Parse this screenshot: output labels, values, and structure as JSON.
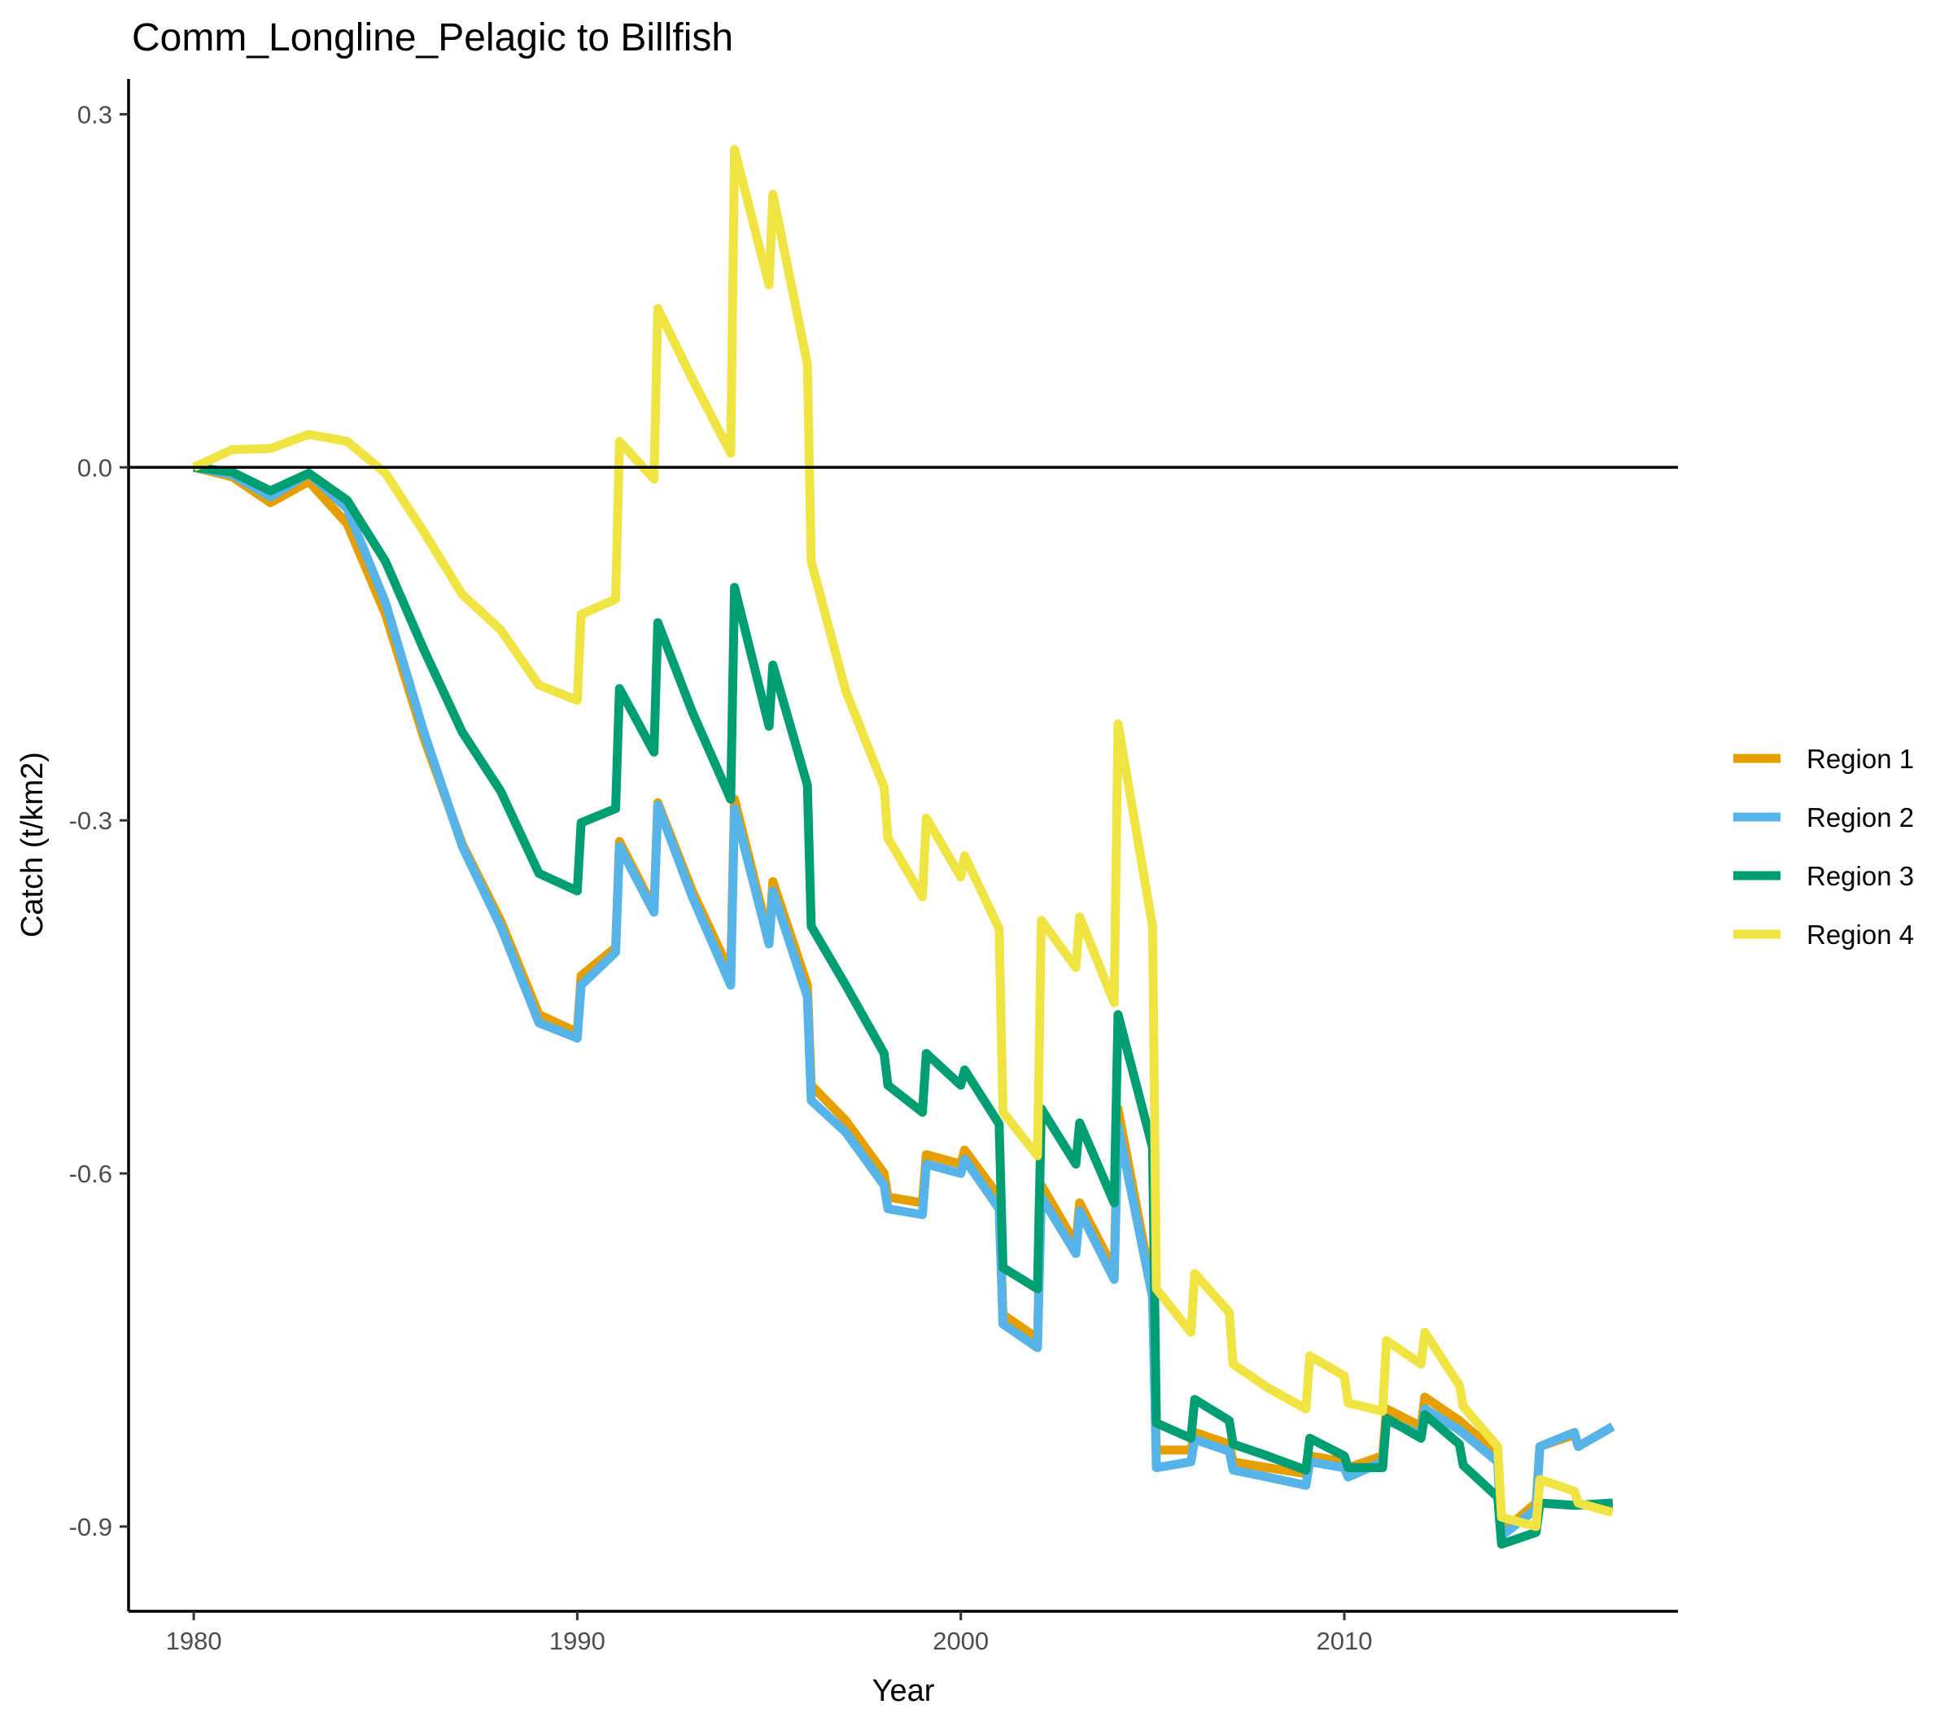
{
  "chart_data": {
    "type": "line",
    "title": "Comm_Longline_Pelagic to Billfish",
    "xlabel": "Year",
    "ylabel": "Catch (t/km2)",
    "xlim": [
      1978.3,
      2018.7
    ],
    "ylim": [
      -0.972,
      0.33
    ],
    "x_ticks": [
      1980,
      1990,
      2000,
      2010
    ],
    "y_ticks": [
      0.3,
      0.0,
      -0.3,
      -0.6,
      -0.9
    ],
    "y_tick_labels": [
      "0.3",
      "0.0",
      "-0.3",
      "-0.6",
      "-0.9"
    ],
    "reference_line_y": 0,
    "grid": false,
    "legend_position": "right",
    "series": [
      {
        "name": "Region 1",
        "color": "#E69F00",
        "points": [
          [
            1980,
            0
          ],
          [
            1981,
            -0.008
          ],
          [
            1982,
            -0.03
          ],
          [
            1983,
            -0.012
          ],
          [
            1984,
            -0.048
          ],
          [
            1985,
            -0.125
          ],
          [
            1986,
            -0.23
          ],
          [
            1987,
            -0.32
          ],
          [
            1988,
            -0.385
          ],
          [
            1989,
            -0.465
          ],
          [
            1990,
            -0.48
          ],
          [
            1990.1,
            -0.432
          ],
          [
            1991,
            -0.408
          ],
          [
            1991.1,
            -0.318
          ],
          [
            1992,
            -0.375
          ],
          [
            1992.1,
            -0.285
          ],
          [
            1993,
            -0.36
          ],
          [
            1994,
            -0.43
          ],
          [
            1994.1,
            -0.282
          ],
          [
            1995,
            -0.4
          ],
          [
            1995.1,
            -0.352
          ],
          [
            1996,
            -0.44
          ],
          [
            1996.1,
            -0.525
          ],
          [
            1997,
            -0.555
          ],
          [
            1998,
            -0.6
          ],
          [
            1998.1,
            -0.62
          ],
          [
            1999,
            -0.625
          ],
          [
            1999.1,
            -0.584
          ],
          [
            2000,
            -0.592
          ],
          [
            2000.1,
            -0.58
          ],
          [
            2001,
            -0.62
          ],
          [
            2001.1,
            -0.72
          ],
          [
            2002,
            -0.74
          ],
          [
            2002.1,
            -0.61
          ],
          [
            2003,
            -0.66
          ],
          [
            2003.1,
            -0.625
          ],
          [
            2004,
            -0.682
          ],
          [
            2004.1,
            -0.545
          ],
          [
            2005,
            -0.7
          ],
          [
            2005.1,
            -0.835
          ],
          [
            2006,
            -0.835
          ],
          [
            2006.1,
            -0.82
          ],
          [
            2007,
            -0.83
          ],
          [
            2007.1,
            -0.845
          ],
          [
            2008,
            -0.85
          ],
          [
            2009,
            -0.855
          ],
          [
            2009.1,
            -0.84
          ],
          [
            2010,
            -0.845
          ],
          [
            2010.1,
            -0.85
          ],
          [
            2011,
            -0.84
          ],
          [
            2011.1,
            -0.8
          ],
          [
            2012,
            -0.815
          ],
          [
            2012.1,
            -0.79
          ],
          [
            2013,
            -0.81
          ],
          [
            2014,
            -0.838
          ],
          [
            2014.1,
            -0.905
          ],
          [
            2015,
            -0.88
          ],
          [
            2015.1,
            -0.832
          ],
          [
            2016,
            -0.822
          ],
          [
            2016.1,
            -0.832
          ],
          [
            2017,
            -0.815
          ]
        ]
      },
      {
        "name": "Region 2",
        "color": "#56B4E9",
        "points": [
          [
            1980,
            0
          ],
          [
            1981,
            -0.006
          ],
          [
            1982,
            -0.025
          ],
          [
            1983,
            -0.005
          ],
          [
            1984,
            -0.035
          ],
          [
            1985,
            -0.115
          ],
          [
            1986,
            -0.225
          ],
          [
            1987,
            -0.322
          ],
          [
            1988,
            -0.39
          ],
          [
            1989,
            -0.472
          ],
          [
            1990,
            -0.485
          ],
          [
            1990.1,
            -0.44
          ],
          [
            1991,
            -0.412
          ],
          [
            1991.1,
            -0.322
          ],
          [
            1992,
            -0.378
          ],
          [
            1992.1,
            -0.287
          ],
          [
            1993,
            -0.365
          ],
          [
            1994,
            -0.44
          ],
          [
            1994.1,
            -0.29
          ],
          [
            1995,
            -0.405
          ],
          [
            1995.1,
            -0.36
          ],
          [
            1996,
            -0.45
          ],
          [
            1996.1,
            -0.538
          ],
          [
            1997,
            -0.565
          ],
          [
            1998,
            -0.61
          ],
          [
            1998.1,
            -0.63
          ],
          [
            1999,
            -0.635
          ],
          [
            1999.1,
            -0.592
          ],
          [
            2000,
            -0.6
          ],
          [
            2000.1,
            -0.588
          ],
          [
            2001,
            -0.63
          ],
          [
            2001.1,
            -0.728
          ],
          [
            2002,
            -0.748
          ],
          [
            2002.1,
            -0.62
          ],
          [
            2003,
            -0.668
          ],
          [
            2003.1,
            -0.632
          ],
          [
            2004,
            -0.69
          ],
          [
            2004.1,
            -0.56
          ],
          [
            2005,
            -0.705
          ],
          [
            2005.1,
            -0.85
          ],
          [
            2006,
            -0.845
          ],
          [
            2006.1,
            -0.826
          ],
          [
            2007,
            -0.836
          ],
          [
            2007.1,
            -0.852
          ],
          [
            2008,
            -0.858
          ],
          [
            2009,
            -0.865
          ],
          [
            2009.1,
            -0.845
          ],
          [
            2010,
            -0.85
          ],
          [
            2010.1,
            -0.858
          ],
          [
            2011,
            -0.845
          ],
          [
            2011.1,
            -0.81
          ],
          [
            2012,
            -0.822
          ],
          [
            2012.1,
            -0.8
          ],
          [
            2013,
            -0.818
          ],
          [
            2014,
            -0.845
          ],
          [
            2014.1,
            -0.908
          ],
          [
            2015,
            -0.885
          ],
          [
            2015.1,
            -0.832
          ],
          [
            2016,
            -0.82
          ],
          [
            2016.1,
            -0.832
          ],
          [
            2017,
            -0.815
          ]
        ]
      },
      {
        "name": "Region 3",
        "color": "#009E73",
        "points": [
          [
            1980,
            0
          ],
          [
            1981,
            -0.004
          ],
          [
            1982,
            -0.02
          ],
          [
            1983,
            -0.005
          ],
          [
            1984,
            -0.028
          ],
          [
            1985,
            -0.08
          ],
          [
            1986,
            -0.155
          ],
          [
            1987,
            -0.225
          ],
          [
            1988,
            -0.275
          ],
          [
            1989,
            -0.345
          ],
          [
            1990,
            -0.36
          ],
          [
            1990.1,
            -0.302
          ],
          [
            1991,
            -0.29
          ],
          [
            1991.1,
            -0.188
          ],
          [
            1992,
            -0.242
          ],
          [
            1992.1,
            -0.132
          ],
          [
            1993,
            -0.208
          ],
          [
            1994,
            -0.282
          ],
          [
            1994.1,
            -0.102
          ],
          [
            1995,
            -0.22
          ],
          [
            1995.1,
            -0.168
          ],
          [
            1996,
            -0.27
          ],
          [
            1996.1,
            -0.39
          ],
          [
            1997,
            -0.44
          ],
          [
            1998,
            -0.498
          ],
          [
            1998.1,
            -0.525
          ],
          [
            1999,
            -0.548
          ],
          [
            1999.1,
            -0.498
          ],
          [
            2000,
            -0.525
          ],
          [
            2000.1,
            -0.512
          ],
          [
            2001,
            -0.558
          ],
          [
            2001.1,
            -0.68
          ],
          [
            2002,
            -0.698
          ],
          [
            2002.1,
            -0.545
          ],
          [
            2003,
            -0.592
          ],
          [
            2003.1,
            -0.557
          ],
          [
            2004,
            -0.625
          ],
          [
            2004.1,
            -0.465
          ],
          [
            2005,
            -0.578
          ],
          [
            2005.1,
            -0.812
          ],
          [
            2006,
            -0.825
          ],
          [
            2006.1,
            -0.792
          ],
          [
            2007,
            -0.81
          ],
          [
            2007.1,
            -0.83
          ],
          [
            2008,
            -0.84
          ],
          [
            2009,
            -0.852
          ],
          [
            2009.1,
            -0.825
          ],
          [
            2010,
            -0.84
          ],
          [
            2010.1,
            -0.85
          ],
          [
            2011,
            -0.85
          ],
          [
            2011.1,
            -0.808
          ],
          [
            2012,
            -0.825
          ],
          [
            2012.1,
            -0.805
          ],
          [
            2013,
            -0.83
          ],
          [
            2013.1,
            -0.848
          ],
          [
            2014,
            -0.875
          ],
          [
            2014.1,
            -0.915
          ],
          [
            2015,
            -0.905
          ],
          [
            2015.1,
            -0.88
          ],
          [
            2016,
            -0.882
          ],
          [
            2017,
            -0.88
          ]
        ]
      },
      {
        "name": "Region 4",
        "color": "#F0E442",
        "points": [
          [
            1980,
            0
          ],
          [
            1981,
            0.015
          ],
          [
            1982,
            0.016
          ],
          [
            1983,
            0.028
          ],
          [
            1984,
            0.022
          ],
          [
            1985,
            -0.005
          ],
          [
            1986,
            -0.055
          ],
          [
            1987,
            -0.108
          ],
          [
            1988,
            -0.138
          ],
          [
            1989,
            -0.185
          ],
          [
            1990,
            -0.198
          ],
          [
            1990.1,
            -0.125
          ],
          [
            1991,
            -0.112
          ],
          [
            1991.1,
            0.022
          ],
          [
            1992,
            -0.01
          ],
          [
            1992.1,
            0.135
          ],
          [
            1993,
            0.075
          ],
          [
            1994,
            0.012
          ],
          [
            1994.1,
            0.27
          ],
          [
            1995,
            0.155
          ],
          [
            1995.1,
            0.232
          ],
          [
            1996,
            0.088
          ],
          [
            1996.1,
            -0.08
          ],
          [
            1997,
            -0.19
          ],
          [
            1998,
            -0.272
          ],
          [
            1998.1,
            -0.315
          ],
          [
            1999,
            -0.365
          ],
          [
            1999.1,
            -0.298
          ],
          [
            2000,
            -0.348
          ],
          [
            2000.1,
            -0.33
          ],
          [
            2001,
            -0.392
          ],
          [
            2001.1,
            -0.548
          ],
          [
            2002,
            -0.585
          ],
          [
            2002.1,
            -0.385
          ],
          [
            2003,
            -0.425
          ],
          [
            2003.1,
            -0.382
          ],
          [
            2004,
            -0.455
          ],
          [
            2004.1,
            -0.218
          ],
          [
            2005,
            -0.39
          ],
          [
            2005.1,
            -0.698
          ],
          [
            2006,
            -0.735
          ],
          [
            2006.1,
            -0.685
          ],
          [
            2007,
            -0.718
          ],
          [
            2007.1,
            -0.762
          ],
          [
            2008,
            -0.782
          ],
          [
            2009,
            -0.8
          ],
          [
            2009.1,
            -0.755
          ],
          [
            2010,
            -0.772
          ],
          [
            2010.1,
            -0.795
          ],
          [
            2011,
            -0.802
          ],
          [
            2011.1,
            -0.742
          ],
          [
            2012,
            -0.762
          ],
          [
            2012.1,
            -0.735
          ],
          [
            2013,
            -0.78
          ],
          [
            2013.1,
            -0.798
          ],
          [
            2014,
            -0.832
          ],
          [
            2014.1,
            -0.892
          ],
          [
            2015,
            -0.9
          ],
          [
            2015.1,
            -0.86
          ],
          [
            2016,
            -0.87
          ],
          [
            2016.1,
            -0.88
          ],
          [
            2017,
            -0.888
          ]
        ]
      }
    ]
  }
}
